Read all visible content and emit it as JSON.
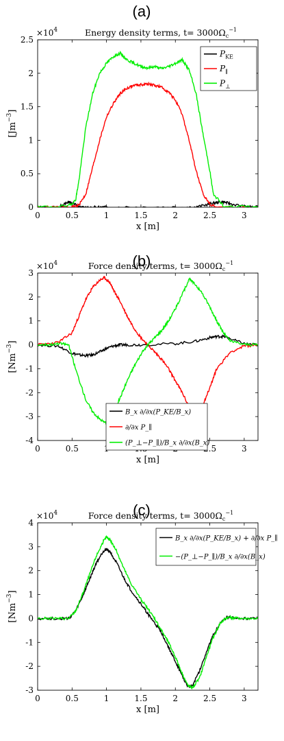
{
  "chart_data": [
    {
      "type": "line",
      "panel_label": "(a)",
      "title": "Energy density terms, t= 3000Ω",
      "title_sup": "−1",
      "title_sub": "c",
      "exponent_base": "×10",
      "exponent_power": "4",
      "ylabel": "[Jm",
      "ylabel_sup": "−3",
      "ylabel_end": "]",
      "xlabel": "x [m]",
      "xlim": [
        0,
        3.2
      ],
      "ylim": [
        0,
        2.5
      ],
      "xticks": [
        "0",
        "0.5",
        "1",
        "1.5",
        "2",
        "2.5",
        "3"
      ],
      "xtick_values": [
        0,
        0.5,
        1,
        1.5,
        2,
        2.5,
        3
      ],
      "yticks": [
        "0",
        "0.5",
        "1",
        "1.5",
        "2",
        "2.5"
      ],
      "ytick_values": [
        0,
        0.5,
        1,
        1.5,
        2,
        2.5
      ],
      "legend_position": "top-right",
      "legend_size": [
        82,
        64
      ],
      "series": [
        {
          "name": "P_KE",
          "label_main": "P",
          "label_sub": "KE",
          "color": "#000000",
          "x": [
            0,
            0.3,
            0.4,
            0.45,
            0.5,
            0.55,
            0.6,
            0.8,
            1.0,
            1.5,
            2.0,
            2.3,
            2.5,
            2.6,
            2.7,
            2.8,
            3.0,
            3.2
          ],
          "y": [
            0.0,
            0.0,
            0.05,
            0.08,
            0.06,
            0.04,
            0.0,
            0.0,
            0.0,
            0.0,
            0.0,
            0.0,
            0.05,
            0.07,
            0.08,
            0.05,
            0.01,
            0.0
          ]
        },
        {
          "name": "P_∥",
          "label_main": "P",
          "label_sub": "∥",
          "color": "#ff0000",
          "x": [
            0,
            0.5,
            0.6,
            0.7,
            0.8,
            0.9,
            1.0,
            1.1,
            1.2,
            1.3,
            1.4,
            1.5,
            1.6,
            1.7,
            1.8,
            1.9,
            2.0,
            2.1,
            2.2,
            2.3,
            2.4,
            2.5,
            2.6,
            3.2
          ],
          "y": [
            0.0,
            0.0,
            0.03,
            0.2,
            0.6,
            1.0,
            1.35,
            1.55,
            1.7,
            1.78,
            1.82,
            1.83,
            1.84,
            1.82,
            1.79,
            1.72,
            1.6,
            1.38,
            1.0,
            0.55,
            0.2,
            0.05,
            0.0,
            0.0
          ]
        },
        {
          "name": "P_⊥",
          "label_main": "P",
          "label_sub": "⊥",
          "color": "#00ee00",
          "x": [
            0,
            0.45,
            0.55,
            0.6,
            0.7,
            0.8,
            0.9,
            1.0,
            1.1,
            1.2,
            1.3,
            1.4,
            1.5,
            1.6,
            1.7,
            1.8,
            1.9,
            2.0,
            2.1,
            2.2,
            2.3,
            2.4,
            2.5,
            2.55,
            2.7,
            3.2
          ],
          "y": [
            0.0,
            0.02,
            0.1,
            0.4,
            1.2,
            1.7,
            2.0,
            2.15,
            2.25,
            2.3,
            2.2,
            2.15,
            2.1,
            2.08,
            2.1,
            2.07,
            2.1,
            2.15,
            2.2,
            2.05,
            1.7,
            1.1,
            0.55,
            0.2,
            0.02,
            0.0
          ]
        }
      ]
    },
    {
      "type": "line",
      "panel_label": "(b)",
      "title": "Force density terms, t= 3000Ω",
      "title_sup": "−1",
      "title_sub": "c",
      "exponent_base": "×10",
      "exponent_power": "4",
      "ylabel": "[Nm",
      "ylabel_sup": "−3",
      "ylabel_end": "]",
      "xlabel": "x [m]",
      "xlim": [
        0,
        3.2
      ],
      "ylim": [
        -4,
        3
      ],
      "xticks": [
        "0",
        "0.5",
        "1",
        "1.5",
        "2",
        "2.5",
        "3"
      ],
      "xtick_values": [
        0,
        0.5,
        1,
        1.5,
        2,
        2.5,
        3
      ],
      "yticks": [
        "-4",
        "-3",
        "-2",
        "-1",
        "0",
        "1",
        "2",
        "3"
      ],
      "ytick_values": [
        -4,
        -3,
        -2,
        -1,
        0,
        1,
        2,
        3
      ],
      "legend_position": "bottom-center",
      "legend_size": [
        148,
        68
      ],
      "series": [
        {
          "name": "B_x ∂/∂x(P_KE/B_x)",
          "label_text": "B",
          "color": "#000000",
          "x": [
            0,
            0.3,
            0.5,
            0.6,
            0.7,
            0.8,
            0.9,
            1.0,
            1.1,
            1.2,
            1.3,
            1.5,
            2.0,
            2.3,
            2.5,
            2.6,
            2.7,
            2.8,
            3.0,
            3.2
          ],
          "y": [
            0.0,
            -0.05,
            -0.35,
            -0.42,
            -0.45,
            -0.42,
            -0.3,
            -0.15,
            -0.05,
            0.0,
            0.0,
            0.0,
            0.05,
            0.15,
            0.3,
            0.35,
            0.35,
            0.25,
            0.05,
            0.0
          ]
        },
        {
          "name": "∂/∂x P_∥",
          "color": "#ff0000",
          "x": [
            0,
            0.3,
            0.5,
            0.6,
            0.7,
            0.8,
            0.9,
            0.97,
            1.05,
            1.1,
            1.2,
            1.3,
            1.4,
            1.5,
            1.6,
            1.7,
            1.8,
            1.9,
            2.0,
            2.1,
            2.2,
            2.3,
            2.4,
            2.5,
            2.6,
            2.8,
            3.0,
            3.2
          ],
          "y": [
            0.0,
            0.1,
            0.5,
            1.2,
            1.9,
            2.4,
            2.7,
            2.8,
            2.6,
            2.3,
            1.8,
            1.2,
            0.7,
            0.3,
            0.0,
            -0.3,
            -0.6,
            -1.0,
            -1.5,
            -2.0,
            -2.6,
            -2.8,
            -2.5,
            -1.8,
            -1.0,
            -0.3,
            -0.05,
            0.0
          ]
        },
        {
          "name": "(P_⊥−P_∥)/B_x ∂/∂x(B_x)",
          "color": "#00ee00",
          "x": [
            0,
            0.2,
            0.35,
            0.45,
            0.55,
            0.7,
            0.8,
            0.9,
            1.0,
            1.1,
            1.2,
            1.3,
            1.4,
            1.5,
            1.6,
            1.7,
            1.8,
            1.9,
            2.0,
            2.1,
            2.2,
            2.3,
            2.4,
            2.5,
            2.6,
            2.7,
            2.8,
            3.0,
            3.2
          ],
          "y": [
            0.0,
            0.02,
            0.05,
            0.0,
            -1.0,
            -2.3,
            -2.8,
            -3.1,
            -3.3,
            -2.8,
            -2.2,
            -1.5,
            -0.9,
            -0.4,
            0.0,
            0.3,
            0.6,
            1.0,
            1.5,
            2.1,
            2.75,
            2.5,
            2.1,
            1.6,
            1.0,
            0.5,
            0.15,
            0.02,
            0.0
          ]
        }
      ]
    },
    {
      "type": "line",
      "panel_label": "(c)",
      "title": "Force density terms, t= 3000Ω",
      "title_sup": "−1",
      "title_sub": "c",
      "exponent_base": "×10",
      "exponent_power": "4",
      "ylabel": "[Nm",
      "ylabel_sup": "−3",
      "ylabel_end": "]",
      "xlabel": "x [m]",
      "xlim": [
        0,
        3.2
      ],
      "ylim": [
        -3,
        4
      ],
      "xticks": [
        "0",
        "0.5",
        "1",
        "1.5",
        "2",
        "2.5",
        "3"
      ],
      "xtick_values": [
        0,
        0.5,
        1,
        1.5,
        2,
        2.5,
        3
      ],
      "yticks": [
        "-3",
        "-2",
        "-1",
        "0",
        "1",
        "2",
        "3",
        "4"
      ],
      "ytick_values": [
        -3,
        -2,
        -1,
        0,
        1,
        2,
        3,
        4
      ],
      "legend_position": "top-right",
      "legend_size": [
        146,
        54
      ],
      "series": [
        {
          "name": "B_x ∂/∂x(P_KE/B_x) + ∂/∂x P_∥",
          "color": "#000000",
          "x": [
            0,
            0.3,
            0.45,
            0.55,
            0.65,
            0.75,
            0.85,
            0.95,
            1.0,
            1.05,
            1.15,
            1.25,
            1.35,
            1.5,
            1.6,
            1.7,
            1.8,
            1.9,
            2.0,
            2.1,
            2.18,
            2.25,
            2.35,
            2.45,
            2.55,
            2.65,
            2.75,
            2.85,
            3.0,
            3.2
          ],
          "y": [
            0.0,
            0.0,
            0.0,
            0.3,
            0.9,
            1.6,
            2.3,
            2.8,
            2.9,
            2.8,
            2.3,
            1.7,
            1.2,
            0.6,
            0.2,
            -0.2,
            -0.6,
            -1.2,
            -1.8,
            -2.4,
            -2.85,
            -2.8,
            -2.2,
            -1.4,
            -0.7,
            -0.2,
            0.05,
            0.02,
            0.0,
            0.0
          ]
        },
        {
          "name": "−(P_⊥−P_∥)/B_x ∂/∂x(B_x)",
          "color": "#00ee00",
          "x": [
            0,
            0.3,
            0.45,
            0.55,
            0.65,
            0.75,
            0.85,
            0.95,
            1.0,
            1.05,
            1.15,
            1.25,
            1.35,
            1.5,
            1.6,
            1.7,
            1.8,
            1.9,
            2.0,
            2.1,
            2.18,
            2.25,
            2.35,
            2.45,
            2.55,
            2.65,
            2.75,
            2.85,
            3.0,
            3.2
          ],
          "y": [
            0.0,
            0.0,
            0.0,
            0.3,
            1.0,
            1.8,
            2.6,
            3.2,
            3.4,
            3.3,
            2.8,
            2.1,
            1.5,
            0.8,
            0.4,
            0.0,
            -0.5,
            -1.0,
            -1.6,
            -2.3,
            -2.8,
            -2.9,
            -2.5,
            -1.6,
            -0.8,
            -0.2,
            0.05,
            0.02,
            0.0,
            0.0
          ]
        }
      ]
    }
  ]
}
